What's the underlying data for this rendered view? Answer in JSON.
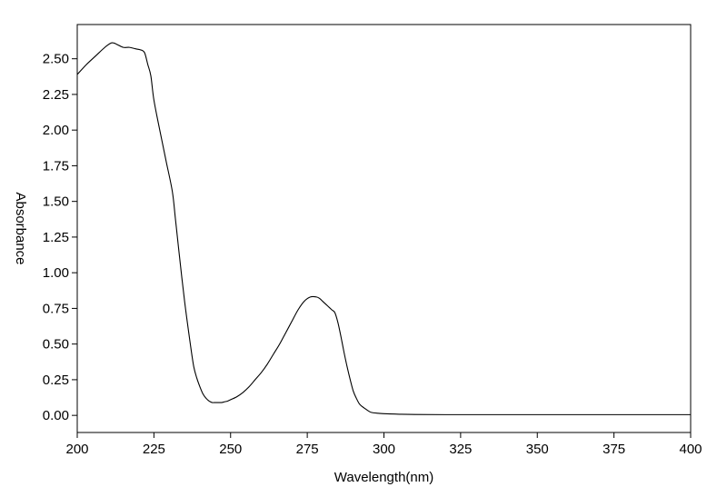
{
  "chart_data": {
    "type": "line",
    "title": "",
    "xlabel": "Wavelength(nm)",
    "ylabel": "Absorbance",
    "xlim": [
      200,
      400
    ],
    "ylim": [
      -0.12,
      2.74
    ],
    "grid": false,
    "legend": "none",
    "x_ticks": [
      200,
      225,
      250,
      275,
      300,
      325,
      350,
      375,
      400
    ],
    "x_tick_labels": [
      "200",
      "225",
      "250",
      "275",
      "300",
      "325",
      "350",
      "375",
      "400"
    ],
    "y_ticks": [
      0,
      0.25,
      0.5,
      0.75,
      1.0,
      1.25,
      1.5,
      1.75,
      2.0,
      2.25,
      2.5
    ],
    "y_tick_labels": [
      "0.00",
      "0.25",
      "0.50",
      "0.75",
      "1.00",
      "1.25",
      "1.50",
      "1.75",
      "2.00",
      "2.25",
      "2.50"
    ],
    "series": [
      {
        "color": "#000000",
        "x": [
          200,
          203,
          206,
          209,
          211,
          212,
          213,
          215,
          217,
          219,
          221,
          222,
          223,
          224,
          225,
          227,
          229,
          231,
          232,
          233,
          235,
          237,
          238,
          239,
          240,
          241,
          242,
          243,
          244,
          245,
          246,
          247,
          248,
          249,
          250,
          252,
          254,
          256,
          258,
          260,
          262,
          264,
          266,
          268,
          270,
          272,
          274,
          276,
          278,
          279,
          280,
          281,
          282,
          283,
          284,
          285,
          286,
          287,
          288,
          289,
          290,
          291,
          292,
          293,
          294,
          295,
          296,
          298,
          300,
          302,
          305,
          310,
          320,
          340,
          360,
          380,
          400
        ],
        "y": [
          2.39,
          2.46,
          2.52,
          2.58,
          2.61,
          2.61,
          2.6,
          2.58,
          2.58,
          2.57,
          2.56,
          2.54,
          2.46,
          2.38,
          2.21,
          1.99,
          1.78,
          1.57,
          1.38,
          1.18,
          0.8,
          0.48,
          0.34,
          0.26,
          0.2,
          0.15,
          0.12,
          0.1,
          0.09,
          0.09,
          0.09,
          0.09,
          0.095,
          0.1,
          0.11,
          0.13,
          0.16,
          0.2,
          0.25,
          0.3,
          0.36,
          0.43,
          0.5,
          0.58,
          0.66,
          0.74,
          0.8,
          0.83,
          0.83,
          0.82,
          0.8,
          0.78,
          0.76,
          0.74,
          0.72,
          0.65,
          0.55,
          0.44,
          0.34,
          0.25,
          0.17,
          0.12,
          0.08,
          0.06,
          0.045,
          0.03,
          0.02,
          0.015,
          0.012,
          0.01,
          0.008,
          0.006,
          0.005,
          0.005,
          0.005,
          0.005,
          0.005
        ]
      }
    ]
  }
}
